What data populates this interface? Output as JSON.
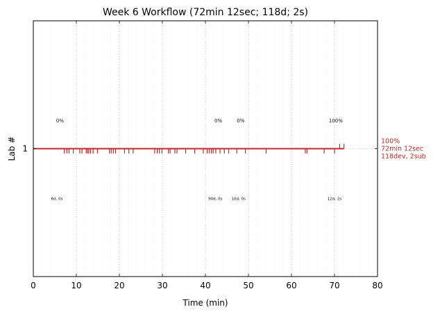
{
  "chart_data": {
    "type": "line",
    "title": "Week 6 Workflow (72min 12sec; 118d; 2s)",
    "xlabel": "Time (min)",
    "ylabel": "Lab #",
    "xlim": [
      0,
      80
    ],
    "ylim": [
      0,
      2
    ],
    "x_ticks": [
      "0",
      "10",
      "20",
      "30",
      "40",
      "50",
      "60",
      "70",
      "80"
    ],
    "x_tick_values": [
      0,
      10,
      20,
      30,
      40,
      50,
      60,
      70,
      80
    ],
    "y_ticks": [
      "1"
    ],
    "y_tick_values": [
      1
    ],
    "grid": "vertical dotted at major and minor ticks",
    "series": [
      {
        "lab": 1,
        "color": "#c0292b",
        "line_range": [
          0,
          72.2
        ],
        "events_down": [
          7.2,
          7.8,
          8.3,
          9.3,
          10.8,
          11.3,
          12.3,
          12.6,
          12.9,
          13.3,
          13.9,
          14.9,
          17.7,
          18.1,
          18.6,
          19.1,
          21.2,
          22.2,
          23.2,
          28.2,
          28.8,
          29.3,
          29.9,
          31.4,
          31.8,
          32.9,
          33.4,
          35.4,
          37.5,
          39.5,
          40.4,
          40.9,
          41.4,
          41.8,
          42.4,
          43.4,
          44.4,
          45.4,
          47.3,
          49.3,
          54.1,
          63.2,
          63.6,
          67.6,
          70.0
        ],
        "events_up": [
          71.2,
          72.2
        ],
        "annotations_top": [
          {
            "x": 6.2,
            "text": "0%"
          },
          {
            "x": 43.0,
            "text": "0%"
          },
          {
            "x": 48.2,
            "text": "0%"
          },
          {
            "x": 70.3,
            "text": "100%"
          }
        ],
        "annotations_bottom": [
          {
            "x": 5.5,
            "text": "6d, 0s"
          },
          {
            "x": 42.3,
            "text": "90d, 0s"
          },
          {
            "x": 47.7,
            "text": "10d, 0s"
          },
          {
            "x": 70.0,
            "text": "12d, 2s"
          }
        ],
        "end_label": [
          "100%",
          "72min 12sec",
          "118dev, 2sub"
        ]
      }
    ]
  }
}
